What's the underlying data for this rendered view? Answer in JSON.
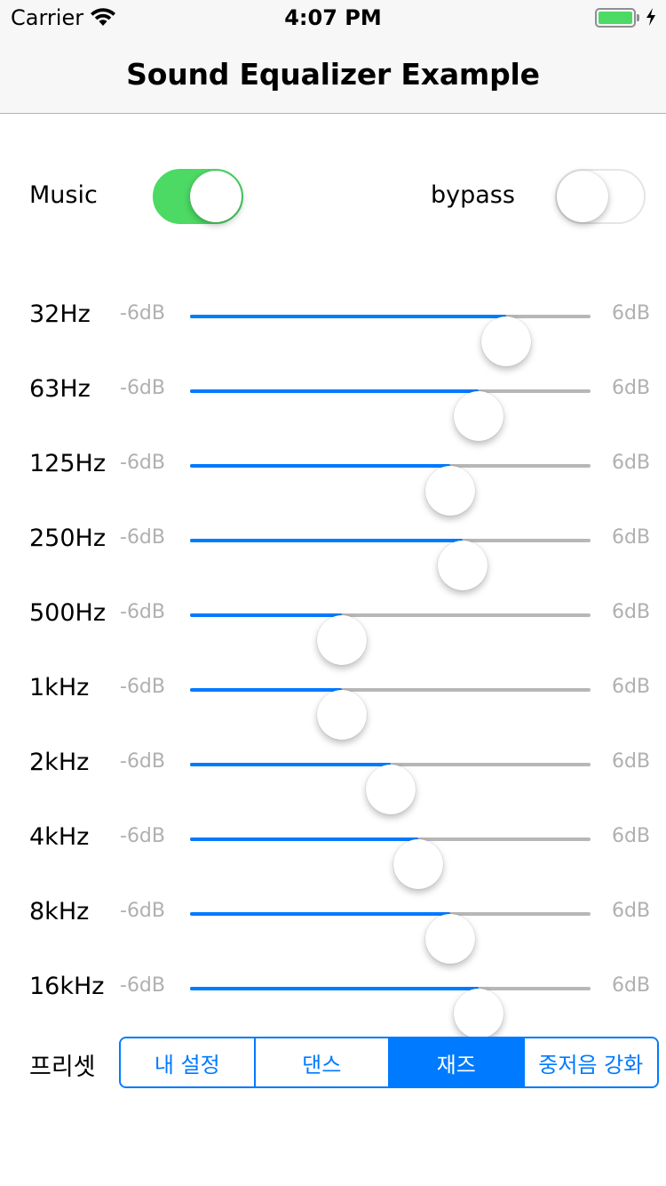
{
  "status_bar": {
    "carrier": "Carrier",
    "time": "4:07 PM",
    "wifi_icon": "wifi-icon",
    "battery_icon": "battery-icon",
    "battery_level": 1.0,
    "charging_icon": "lightning-bolt-icon"
  },
  "nav": {
    "title": "Sound Equalizer Example"
  },
  "toggles": {
    "music": {
      "label": "Music",
      "on": true
    },
    "bypass": {
      "label": "bypass",
      "on": false
    }
  },
  "equalizer": {
    "min_label": "-6dB",
    "max_label": "6dB",
    "bands": [
      {
        "label": "32Hz",
        "value": 0.79
      },
      {
        "label": "63Hz",
        "value": 0.72
      },
      {
        "label": "125Hz",
        "value": 0.65
      },
      {
        "label": "250Hz",
        "value": 0.68
      },
      {
        "label": "500Hz",
        "value": 0.38
      },
      {
        "label": "1kHz",
        "value": 0.38
      },
      {
        "label": "2kHz",
        "value": 0.5
      },
      {
        "label": "4kHz",
        "value": 0.57
      },
      {
        "label": "8kHz",
        "value": 0.65
      },
      {
        "label": "16kHz",
        "value": 0.72
      }
    ]
  },
  "preset": {
    "label": "프리셋",
    "segments": [
      "내 설정",
      "댄스",
      "재즈",
      "중저음 강화"
    ],
    "selected_index": 2
  },
  "colors": {
    "accent": "#007aff",
    "switch_on": "#4cd964",
    "track_off": "#b7b7b7",
    "muted_text": "#b0b0b0"
  }
}
